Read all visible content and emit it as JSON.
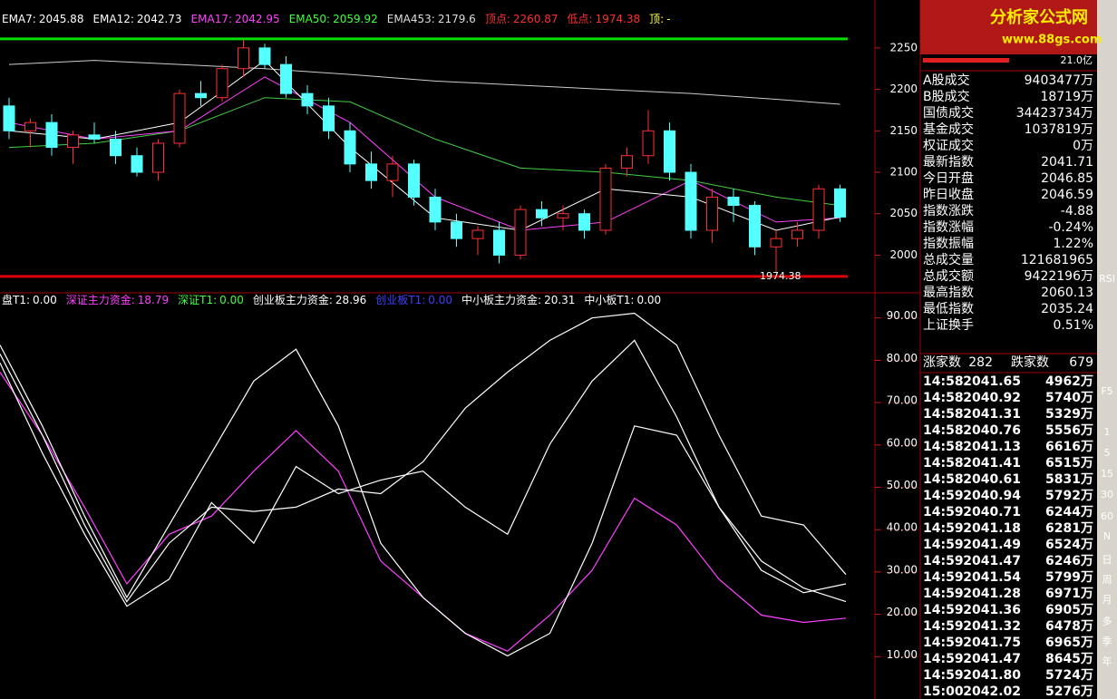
{
  "chart_data": [
    {
      "type": "candlestick",
      "header": [
        {
          "label": "EMA7:",
          "value": 2045.88,
          "color": "#ffffff"
        },
        {
          "label": "EMA12:",
          "value": 2042.73,
          "color": "#ffffff"
        },
        {
          "label": "EMA17:",
          "value": 2042.95,
          "color": "#ff40ff"
        },
        {
          "label": "EMA50:",
          "value": 2059.92,
          "color": "#40ff40"
        },
        {
          "label": "EMA453:",
          "value": 2179.6,
          "color": "#dddddd"
        },
        {
          "label": "顶点:",
          "value": 2260.87,
          "color": "#ff3030"
        },
        {
          "label": "低点:",
          "value": 1974.38,
          "color": "#ff3030"
        },
        {
          "label": "顶:",
          "value": "-",
          "color": "#ffff40"
        }
      ],
      "open": [
        2180,
        2150,
        2160,
        2130,
        2145,
        2140,
        2120,
        2100,
        2135,
        2195,
        2190,
        2225,
        2250,
        2230,
        2195,
        2180,
        2150,
        2110,
        2090,
        2110,
        2070,
        2040,
        2020,
        2030,
        2000,
        2055,
        2045,
        2050,
        2030,
        2105,
        2120,
        2150,
        2100,
        2030,
        2070,
        2060,
        2010,
        2020,
        2030,
        2080
      ],
      "high": [
        2190,
        2165,
        2170,
        2150,
        2160,
        2150,
        2130,
        2140,
        2200,
        2210,
        2230,
        2260,
        2255,
        2240,
        2205,
        2190,
        2160,
        2125,
        2120,
        2115,
        2080,
        2050,
        2035,
        2040,
        2060,
        2065,
        2060,
        2055,
        2110,
        2130,
        2175,
        2160,
        2110,
        2080,
        2080,
        2065,
        2030,
        2040,
        2085,
        2085
      ],
      "low": [
        2140,
        2130,
        2120,
        2110,
        2135,
        2110,
        2095,
        2090,
        2130,
        2180,
        2185,
        2215,
        2225,
        2190,
        2170,
        2140,
        2100,
        2080,
        2070,
        2060,
        2030,
        2010,
        2000,
        1990,
        1995,
        2035,
        2030,
        2020,
        2025,
        2095,
        2110,
        2090,
        2020,
        2015,
        2040,
        2000,
        1980,
        2010,
        2020,
        2040
      ],
      "close": [
        2150,
        2160,
        2130,
        2145,
        2140,
        2120,
        2100,
        2135,
        2195,
        2190,
        2225,
        2250,
        2230,
        2195,
        2180,
        2150,
        2110,
        2090,
        2110,
        2070,
        2040,
        2020,
        2030,
        2000,
        2055,
        2045,
        2050,
        2030,
        2105,
        2120,
        2150,
        2100,
        2030,
        2070,
        2060,
        2010,
        2020,
        2030,
        2080,
        2046
      ],
      "up_color": "#ff3030",
      "down_color": "#54ffff",
      "lines": [
        {
          "color": "#cccccc",
          "x": [
            0,
            4,
            8,
            12,
            16,
            20,
            24,
            28,
            32,
            36,
            39
          ],
          "values": [
            2230,
            2235,
            2230,
            2225,
            2218,
            2210,
            2205,
            2200,
            2195,
            2188,
            2182
          ]
        },
        {
          "color": "#40d040",
          "x": [
            0,
            4,
            8,
            12,
            16,
            20,
            24,
            28,
            32,
            36,
            39
          ],
          "values": [
            2130,
            2135,
            2150,
            2190,
            2185,
            2140,
            2105,
            2100,
            2090,
            2070,
            2060
          ]
        },
        {
          "color": "#ff40ff",
          "x": [
            0,
            4,
            8,
            12,
            16,
            20,
            24,
            28,
            32,
            36,
            39
          ],
          "values": [
            2160,
            2140,
            2150,
            2215,
            2160,
            2070,
            2030,
            2040,
            2090,
            2040,
            2045
          ]
        },
        {
          "color": "#ffffff",
          "x": [
            0,
            4,
            8,
            12,
            16,
            20,
            24,
            28,
            32,
            36,
            39
          ],
          "values": [
            2150,
            2140,
            2160,
            2235,
            2130,
            2045,
            2030,
            2080,
            2070,
            2030,
            2046
          ]
        }
      ],
      "ylim": [
        1960,
        2275
      ],
      "yticks": [
        2000,
        2050,
        2100,
        2150,
        2200,
        2250
      ]
    },
    {
      "type": "line",
      "header": [
        {
          "label": "盘T1:",
          "value": "0.00",
          "color": "#ffffff"
        },
        {
          "label": "深证主力资金:",
          "value": 18.79,
          "color": "#ff40ff"
        },
        {
          "label": "深证T1:",
          "value": "0.00",
          "color": "#40ff40"
        },
        {
          "label": "创业板主力资金:",
          "value": 28.96,
          "color": "#ffffff"
        },
        {
          "label": "创业板T1:",
          "value": "0.00",
          "color": "#4040ff"
        },
        {
          "label": "中小板主力资金:",
          "value": 20.31,
          "color": "#ffffff"
        },
        {
          "label": "中小板T1:",
          "value": "0.00",
          "color": "#ffffff"
        }
      ],
      "x": [
        0,
        1,
        2,
        3,
        4,
        5,
        6,
        7,
        8,
        9,
        10,
        11,
        12,
        13,
        14,
        15,
        16,
        17,
        18,
        19,
        20
      ],
      "xlim": [
        0,
        20
      ],
      "series": [
        {
          "color": "#ff40ff",
          "values": [
            77.2,
            62.3,
            45.3,
            27.2,
            38.9,
            43.2,
            53.8,
            63.4,
            53.8,
            32.6,
            24.0,
            15.5,
            11.3,
            19.8,
            30.4,
            47.4,
            41.1,
            28.3,
            19.8,
            18.1,
            19.1
          ]
        },
        {
          "color": "#ffffff",
          "values": [
            83.6,
            64.5,
            43.2,
            24.0,
            41.1,
            58.1,
            75.1,
            82.6,
            64.5,
            36.8,
            24.0,
            15.5,
            10.2,
            15.5,
            36.8,
            64.5,
            62.3,
            45.3,
            32.6,
            26.2,
            23.0
          ]
        },
        {
          "color": "#ffffff",
          "values": [
            81.5,
            62.3,
            41.1,
            23.0,
            36.8,
            45.3,
            44.3,
            45.3,
            49.6,
            48.5,
            56.0,
            68.7,
            77.2,
            84.7,
            90.0,
            91.1,
            83.6,
            62.3,
            43.2,
            41.1,
            29.4
          ]
        },
        {
          "color": "#ffffff",
          "values": [
            79.4,
            58.1,
            38.9,
            21.9,
            28.3,
            46.4,
            36.8,
            54.9,
            48.5,
            51.7,
            53.8,
            45.3,
            38.9,
            60.2,
            75.1,
            84.7,
            66.6,
            45.3,
            30.4,
            25.1,
            27.2
          ]
        }
      ],
      "ylim": [
        0,
        95.5
      ],
      "yticks": [
        {
          "value": 10,
          "label": "10.00"
        },
        {
          "value": 20,
          "label": "20.00"
        },
        {
          "value": 30,
          "label": "30.00"
        },
        {
          "value": 40,
          "label": "40.00"
        },
        {
          "value": 50,
          "label": "50.00"
        },
        {
          "value": 60,
          "label": "60.00"
        },
        {
          "value": 70,
          "label": "70.00"
        },
        {
          "value": 80,
          "label": "80.00"
        },
        {
          "value": 90,
          "label": "90.00"
        }
      ]
    }
  ],
  "logo": {
    "title": "分析家公式网",
    "url": "www.88gs.com"
  },
  "side_panel": {
    "amount": "21.0亿",
    "stats": [
      [
        "A股成交",
        "9403477万",
        "#ffffff"
      ],
      [
        "B股成交",
        "18719万",
        "#ffffff"
      ],
      [
        "国债成交",
        "34423734万",
        "#ffffff"
      ],
      [
        "基金成交",
        "1037819万",
        "#ffffff"
      ],
      [
        "权证成交",
        "0万",
        "#ffffff"
      ],
      [
        "最新指数",
        "2041.71",
        "#40ff40"
      ],
      [
        "今日开盘",
        "2046.85",
        "#ff3030"
      ],
      [
        "昨日收盘",
        "2046.59",
        "#ffffff"
      ],
      [
        "指数涨跌",
        "-4.88",
        "#40ff40"
      ],
      [
        "指数涨幅",
        "-0.24%",
        "#40ff40"
      ],
      [
        "指数振幅",
        "1.22%",
        "#ffffff"
      ],
      [
        "总成交量",
        "121681965",
        "#ffffff"
      ],
      [
        "总成交额",
        "9422196万",
        "#ffffff"
      ],
      [
        "最高指数",
        "2060.13",
        "#ff3030"
      ],
      [
        "最低指数",
        "2035.24",
        "#40ff40"
      ],
      [
        "上证换手",
        "0.51%",
        "#ffffff"
      ]
    ],
    "breadth": [
      "涨家数",
      "282",
      "跌家数",
      "679"
    ],
    "trades": [
      [
        "14:58",
        "2041.65",
        "4962万"
      ],
      [
        "14:58",
        "2040.92",
        "5740万"
      ],
      [
        "14:58",
        "2041.31",
        "5329万"
      ],
      [
        "14:58",
        "2040.76",
        "5556万"
      ],
      [
        "14:58",
        "2041.13",
        "6616万"
      ],
      [
        "14:58",
        "2041.41",
        "6515万"
      ],
      [
        "14:58",
        "2040.61",
        "5831万"
      ],
      [
        "14:59",
        "2040.94",
        "5792万"
      ],
      [
        "14:59",
        "2040.71",
        "6244万"
      ],
      [
        "14:59",
        "2041.18",
        "6281万"
      ],
      [
        "14:59",
        "2041.49",
        "6524万"
      ],
      [
        "14:59",
        "2041.47",
        "6246万"
      ],
      [
        "14:59",
        "2041.54",
        "5799万"
      ],
      [
        "14:59",
        "2041.28",
        "6971万"
      ],
      [
        "14:59",
        "2041.36",
        "6905万"
      ],
      [
        "14:59",
        "2041.32",
        "6478万"
      ],
      [
        "14:59",
        "2041.75",
        "6965万"
      ],
      [
        "14:59",
        "2041.47",
        "8645万"
      ],
      [
        "14:59",
        "2041.80",
        "5724万"
      ],
      [
        "15:00",
        "2042.02",
        "5276万"
      ]
    ]
  },
  "toolbar": [
    "RSI",
    "F5",
    "1",
    "5",
    "15",
    "30",
    "60",
    "N",
    "日",
    "周",
    "月",
    "多",
    "季",
    "年"
  ]
}
